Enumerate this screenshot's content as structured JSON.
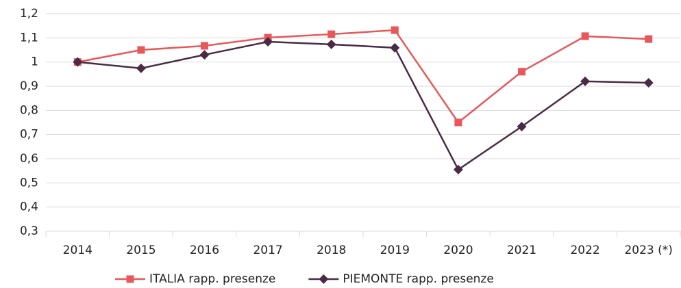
{
  "chart_data": {
    "type": "line",
    "categories": [
      "2014",
      "2015",
      "2016",
      "2017",
      "2018",
      "2019",
      "2020",
      "2021",
      "2022",
      "2023 (*)"
    ],
    "series": [
      {
        "name": "ITALIA rapp. presenze",
        "color": "#e8585a",
        "marker": "square",
        "values": [
          1.0,
          1.05,
          1.067,
          1.101,
          1.115,
          1.132,
          0.75,
          0.96,
          1.107,
          1.095
        ]
      },
      {
        "name": "PIEMONTE rapp. presenze",
        "color": "#4a2a45",
        "marker": "diamond",
        "values": [
          1.0,
          0.974,
          1.03,
          1.084,
          1.073,
          1.059,
          0.555,
          0.733,
          0.92,
          0.914
        ]
      }
    ],
    "ylim": [
      0.3,
      1.2
    ],
    "yticks": [
      {
        "value": 0.3,
        "label": "0,3"
      },
      {
        "value": 0.4,
        "label": "0,4"
      },
      {
        "value": 0.5,
        "label": "0,5"
      },
      {
        "value": 0.6,
        "label": "0,6"
      },
      {
        "value": 0.7,
        "label": "0,7"
      },
      {
        "value": 0.8,
        "label": "0,8"
      },
      {
        "value": 0.9,
        "label": "0,9"
      },
      1,
      {
        "value": 1.1,
        "label": "1,1"
      },
      {
        "value": 1.2,
        "label": "1,2"
      }
    ],
    "grid": true,
    "legend": "bottom"
  }
}
